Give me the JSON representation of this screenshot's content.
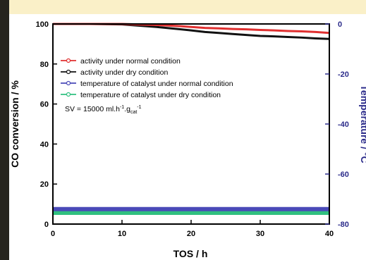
{
  "chart_data": {
    "type": "line",
    "xlabel": "TOS / h",
    "ylabel": "CO conversion / %",
    "y2label": "Temperature / °C",
    "xlim": [
      0,
      40
    ],
    "ylim": [
      0,
      100
    ],
    "y2lim": [
      -80,
      0
    ],
    "xticks": [
      0,
      10,
      20,
      30,
      40
    ],
    "yticks": [
      0,
      20,
      40,
      60,
      80,
      100
    ],
    "y2ticks": [
      0,
      -20,
      -40,
      -60,
      -80
    ],
    "grid": false,
    "legend_position": "upper-left",
    "annotation": {
      "prefix": "SV = 15000 ml.h",
      "sup1": "-1",
      "mid": ".g",
      "sub": "cat",
      "sup2": "-1"
    },
    "series": [
      {
        "name": "activity under normal condition",
        "axis": "left",
        "color": "#e03030",
        "x": [
          0,
          5,
          10,
          15,
          18,
          20,
          22,
          24,
          26,
          28,
          30,
          32,
          34,
          36,
          38,
          40
        ],
        "y": [
          100,
          100,
          100,
          99.5,
          99,
          98.5,
          98,
          97.8,
          97.5,
          97.3,
          97,
          96.8,
          96.5,
          96.3,
          96,
          95.5
        ]
      },
      {
        "name": "activity under dry condition",
        "axis": "left",
        "color": "#111111",
        "x": [
          0,
          5,
          10,
          15,
          18,
          20,
          22,
          24,
          26,
          28,
          30,
          32,
          34,
          36,
          38,
          40
        ],
        "y": [
          100,
          100,
          99.8,
          98.5,
          97.5,
          96.8,
          96,
          95.5,
          95,
          94.5,
          94,
          93.8,
          93.5,
          93.2,
          92.8,
          92.5
        ]
      },
      {
        "name": "temperature of catalyst under normal condition",
        "axis": "right",
        "color": "#4a4ab8",
        "x": [
          0,
          10,
          20,
          30,
          40
        ],
        "y": [
          -74,
          -74,
          -74,
          -74,
          -74
        ]
      },
      {
        "name": "temperature of catalyst under dry condition",
        "axis": "right",
        "color": "#30c080",
        "x": [
          0,
          10,
          20,
          30,
          40
        ],
        "y": [
          -75.5,
          -75.5,
          -75.5,
          -75.5,
          -75.5
        ]
      }
    ]
  }
}
